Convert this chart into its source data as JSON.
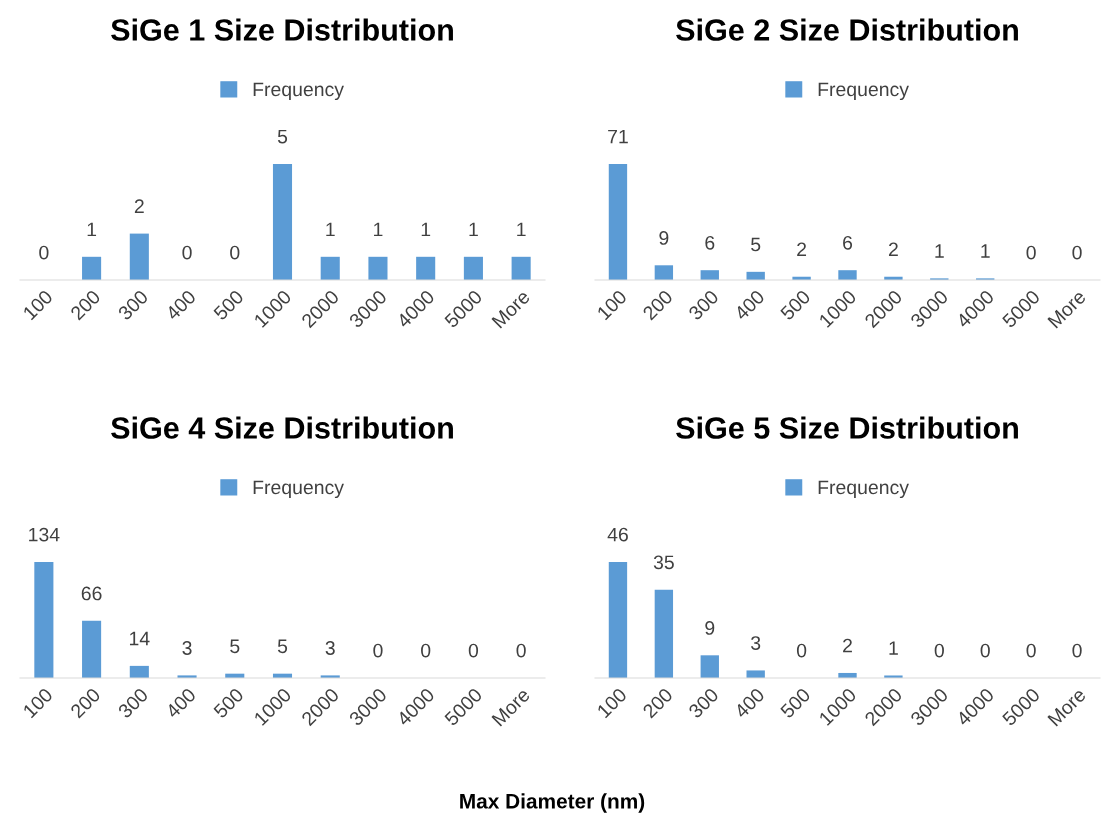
{
  "chart_data": [
    {
      "type": "bar",
      "title": "SiGe 1 Size Distribution",
      "categories": [
        "100",
        "200",
        "300",
        "400",
        "500",
        "1000",
        "2000",
        "3000",
        "4000",
        "5000",
        "More"
      ],
      "series": [
        {
          "name": "Frequency",
          "color": "#5b9bd5",
          "values": [
            0,
            1,
            2,
            0,
            0,
            5,
            1,
            1,
            1,
            1,
            1
          ]
        }
      ],
      "data_labels": true,
      "legend": "top",
      "grid": false
    },
    {
      "type": "bar",
      "title": "SiGe 2 Size Distribution",
      "categories": [
        "100",
        "200",
        "300",
        "400",
        "500",
        "1000",
        "2000",
        "3000",
        "4000",
        "5000",
        "More"
      ],
      "series": [
        {
          "name": "Frequency",
          "color": "#5b9bd5",
          "values": [
            71,
            9,
            6,
            5,
            2,
            6,
            2,
            1,
            1,
            0,
            0
          ]
        }
      ],
      "data_labels": true,
      "legend": "top",
      "grid": false
    },
    {
      "type": "bar",
      "title": "SiGe 4 Size Distribution",
      "categories": [
        "100",
        "200",
        "300",
        "400",
        "500",
        "1000",
        "2000",
        "3000",
        "4000",
        "5000",
        "More"
      ],
      "series": [
        {
          "name": "Frequency",
          "color": "#5b9bd5",
          "values": [
            134,
            66,
            14,
            3,
            5,
            5,
            3,
            0,
            0,
            0,
            0
          ]
        }
      ],
      "data_labels": true,
      "legend": "top",
      "grid": false
    },
    {
      "type": "bar",
      "title": "SiGe 5 Size Distribution",
      "categories": [
        "100",
        "200",
        "300",
        "400",
        "500",
        "1000",
        "2000",
        "3000",
        "4000",
        "5000",
        "More"
      ],
      "series": [
        {
          "name": "Frequency",
          "color": "#5b9bd5",
          "values": [
            46,
            35,
            9,
            3,
            0,
            2,
            1,
            0,
            0,
            0,
            0
          ]
        }
      ],
      "data_labels": true,
      "legend": "top",
      "grid": false,
      "annotations": [
        "Max Diameter (nm)"
      ]
    }
  ]
}
